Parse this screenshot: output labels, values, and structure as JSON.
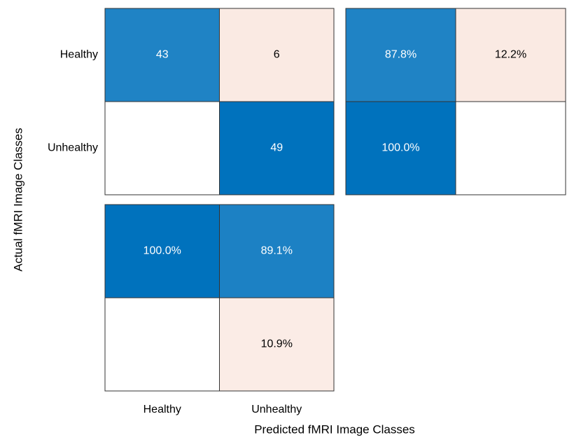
{
  "chart_data": {
    "type": "confusion",
    "categories": [
      "Healthy",
      "Unhealthy"
    ],
    "xlabel": "Predicted fMRI Image Classes",
    "ylabel": "Actual fMRI Image Classes",
    "correct_color": "#0072bd",
    "incorrect_color": "#d95319",
    "matrix": {
      "values": [
        [
          43,
          6
        ],
        [
          null,
          49
        ]
      ]
    },
    "row_summary": {
      "values": [
        [
          87.8,
          12.2
        ],
        [
          100.0,
          null
        ]
      ],
      "value_labels": [
        [
          "87.8%",
          "12.2%"
        ],
        [
          "100.0%",
          null
        ]
      ]
    },
    "column_summary": {
      "values": [
        [
          100.0,
          89.1
        ],
        [
          null,
          10.9
        ]
      ],
      "value_labels": [
        [
          "100.0%",
          "89.1%"
        ],
        [
          null,
          "10.9%"
        ]
      ]
    }
  }
}
